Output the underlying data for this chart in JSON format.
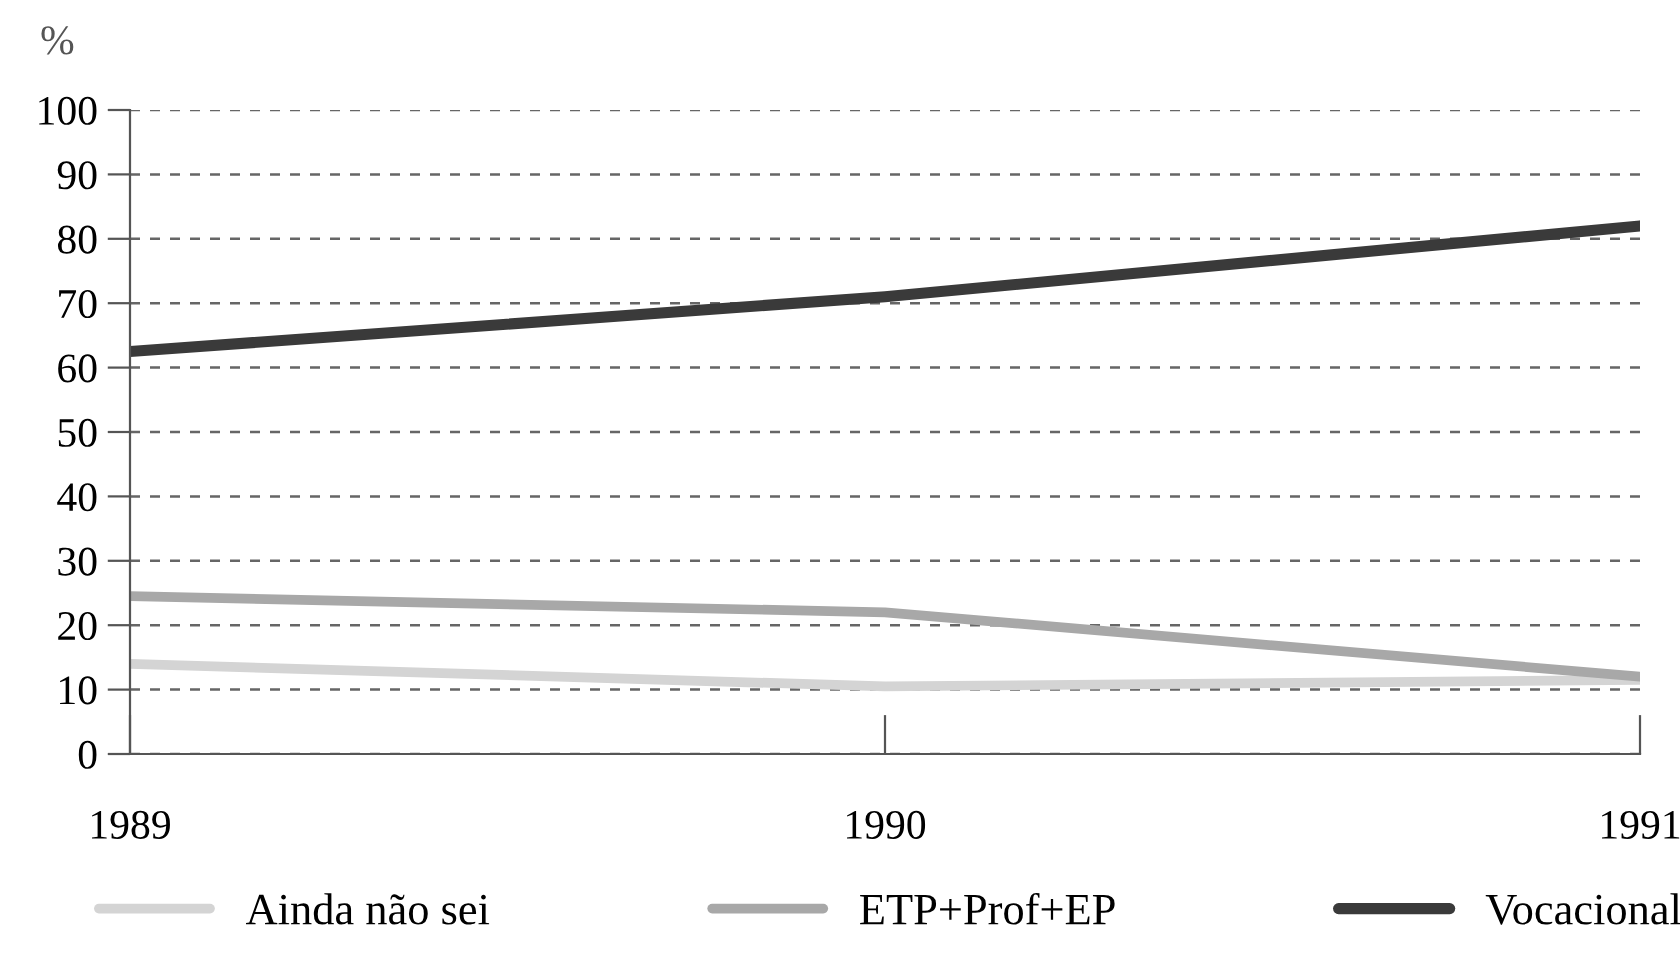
{
  "chart_data": {
    "type": "line",
    "ylabel": "%",
    "categories": [
      "1989",
      "1990",
      "1991"
    ],
    "series": [
      {
        "name": "Ainda não sei",
        "color": "#d4d4d4",
        "values": [
          14,
          10.5,
          11.5
        ]
      },
      {
        "name": "ETP+Prof+EP",
        "color": "#a8a8a8",
        "values": [
          24.5,
          22,
          12
        ]
      },
      {
        "name": "Vocacional",
        "color": "#3a3a3a",
        "values": [
          62.5,
          71,
          82
        ]
      }
    ],
    "ylim": [
      0,
      100
    ],
    "yticks": [
      0,
      10,
      20,
      30,
      40,
      50,
      60,
      70,
      80,
      90,
      100
    ],
    "grid": "y",
    "legend": "bottom",
    "line_style": "solid",
    "marker": "none"
  }
}
